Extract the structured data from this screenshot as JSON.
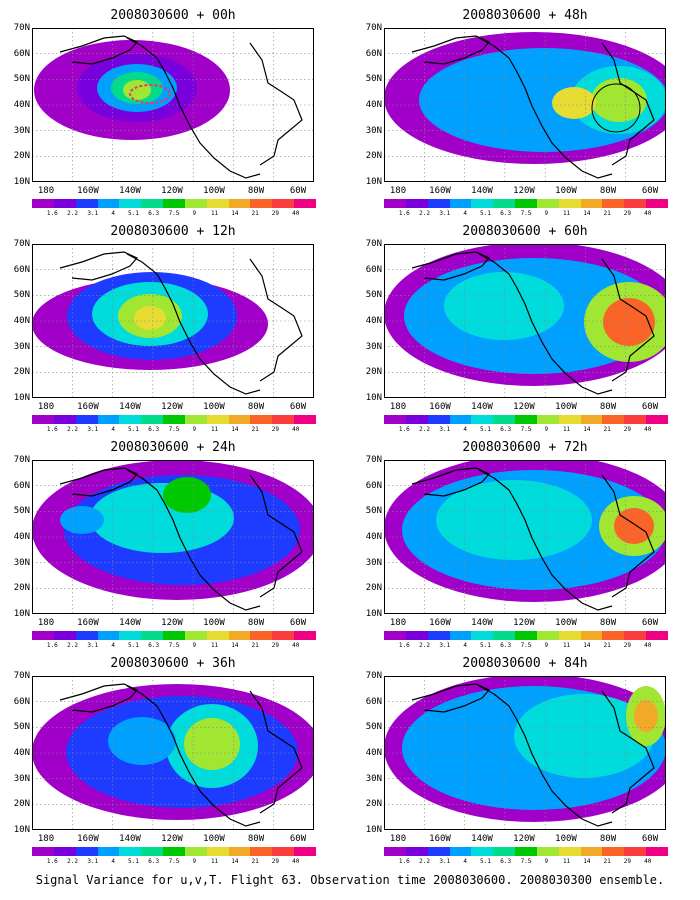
{
  "caption": "Signal Variance for u,v,T. Flight 63. Observation time 2008030600. 2008030300 ensemble.",
  "y_ticks": [
    "70N",
    "60N",
    "50N",
    "40N",
    "30N",
    "20N",
    "10N"
  ],
  "x_ticks": [
    "180",
    "160W",
    "140W",
    "120W",
    "100W",
    "80W",
    "60W"
  ],
  "colorbar": {
    "labels": [
      "1.6",
      "2.2",
      "3.1",
      "4",
      "5.1",
      "6.3",
      "7.5",
      "9",
      "11",
      "14",
      "21",
      "29",
      "40"
    ],
    "colors": [
      "#a000c8",
      "#7800dc",
      "#1e3cff",
      "#00a0ff",
      "#00dcdc",
      "#00dc8c",
      "#00c800",
      "#a0e632",
      "#e6dc32",
      "#f0aa28",
      "#fa6428",
      "#fa3c3c",
      "#f00082"
    ]
  },
  "panels": [
    {
      "title": "2008030600 + 00h"
    },
    {
      "title": "2008030600 + 48h"
    },
    {
      "title": "2008030600 + 12h"
    },
    {
      "title": "2008030600 + 60h"
    },
    {
      "title": "2008030600 + 24h"
    },
    {
      "title": "2008030600 + 72h"
    },
    {
      "title": "2008030600 + 36h"
    },
    {
      "title": "2008030600 + 84h"
    }
  ]
}
